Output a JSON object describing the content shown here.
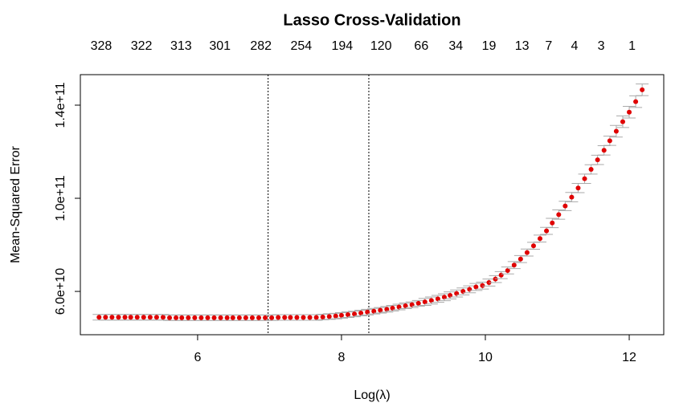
{
  "chart_data": {
    "type": "errorbar",
    "title": "Lasso Cross-Validation",
    "x_label": "Log(λ)",
    "y_label": "Mean-Squared Error",
    "x": [
      4.63,
      4.72,
      4.81,
      4.9,
      4.99,
      5.07,
      5.16,
      5.25,
      5.34,
      5.43,
      5.52,
      5.61,
      5.7,
      5.78,
      5.87,
      5.96,
      6.05,
      6.14,
      6.23,
      6.32,
      6.41,
      6.49,
      6.58,
      6.67,
      6.76,
      6.85,
      6.94,
      7.03,
      7.12,
      7.21,
      7.29,
      7.38,
      7.47,
      7.56,
      7.65,
      7.74,
      7.83,
      7.92,
      8.0,
      8.09,
      8.18,
      8.27,
      8.36,
      8.45,
      8.54,
      8.63,
      8.71,
      8.8,
      8.89,
      8.98,
      9.07,
      9.16,
      9.25,
      9.34,
      9.43,
      9.51,
      9.6,
      9.69,
      9.78,
      9.87,
      9.96,
      10.05,
      10.14,
      10.22,
      10.31,
      10.4,
      10.49,
      10.58,
      10.67,
      10.76,
      10.85,
      10.93,
      11.02,
      11.11,
      11.2,
      11.29,
      11.38,
      11.47,
      11.56,
      11.65,
      11.73,
      11.82,
      11.91,
      12.0,
      12.09,
      12.18
    ],
    "values": [
      48900000000.0,
      48900000000.0,
      48900000000.0,
      48900000000.0,
      48900000000.0,
      48900000000.0,
      48900000000.0,
      48900000000.0,
      48900000000.0,
      48900000000.0,
      48900000000.0,
      48700000000.0,
      48700000000.0,
      48700000000.0,
      48700000000.0,
      48700000000.0,
      48700000000.0,
      48700000000.0,
      48700000000.0,
      48700000000.0,
      48700000000.0,
      48700000000.0,
      48700000000.0,
      48700000000.0,
      48700000000.0,
      48700000000.0,
      48700000000.0,
      48700000000.0,
      48800000000.0,
      48800000000.0,
      48800000000.0,
      48800000000.0,
      48800000000.0,
      48800000000.0,
      48800000000.0,
      49000000000.0,
      49200000000.0,
      49400000000.0,
      49700000000.0,
      50000000000.0,
      50300000000.0,
      50700000000.0,
      51100000000.0,
      51500000000.0,
      51900000000.0,
      52300000000.0,
      52800000000.0,
      53300000000.0,
      53800000000.0,
      54300000000.0,
      54900000000.0,
      55500000000.0,
      56100000000.0,
      56800000000.0,
      57500000000.0,
      58300000000.0,
      59100000000.0,
      60000000000.0,
      60900000000.0,
      61900000000.0,
      62500000000.0,
      63800000000.0,
      65300000000.0,
      67000000000.0,
      69000000000.0,
      71300000000.0,
      73900000000.0,
      76700000000.0,
      79600000000.0,
      82700000000.0,
      86000000000.0,
      89400000000.0,
      93000000000.0,
      96700000000.0,
      100500000000.0,
      104400000000.0,
      108400000000.0,
      112400000000.0,
      116500000000.0,
      120600000000.0,
      124700000000.0,
      128800000000.0,
      132900000000.0,
      137000000000.0,
      141500000000.0,
      146600000000.0
    ],
    "errors": [
      1200000000.0,
      1200000000.0,
      1200000000.0,
      1200000000.0,
      1200000000.0,
      1200000000.0,
      1200000000.0,
      1200000000.0,
      1200000000.0,
      1200000000.0,
      1200000000.0,
      1200000000.0,
      1200000000.0,
      1200000000.0,
      1200000000.0,
      1200000000.0,
      1200000000.0,
      1200000000.0,
      1200000000.0,
      1200000000.0,
      1200000000.0,
      1200000000.0,
      1200000000.0,
      1200000000.0,
      1200000000.0,
      1200000000.0,
      1200000000.0,
      1200000000.0,
      1200000000.0,
      1200000000.0,
      1200000000.0,
      1200000000.0,
      1200000000.0,
      1200000000.0,
      1200000000.0,
      1200000000.0,
      1200000000.0,
      1200000000.0,
      1200000000.0,
      1200000000.0,
      1200000000.0,
      1200000000.0,
      1200000000.0,
      1200000000.0,
      1200000000.0,
      1200000000.0,
      1200000000.0,
      1200000000.0,
      1200000000.0,
      1200000000.0,
      1200000000.0,
      1500000000.0,
      1500000000.0,
      1500000000.0,
      1500000000.0,
      1500000000.0,
      1500000000.0,
      1500000000.0,
      1500000000.0,
      1500000000.0,
      1500000000.0,
      1500000000.0,
      1500000000.0,
      1500000000.0,
      1500000000.0,
      1500000000.0,
      1500000000.0,
      1500000000.0,
      1500000000.0,
      1500000000.0,
      1500000000.0,
      2000000000.0,
      2000000000.0,
      2000000000.0,
      2000000000.0,
      2000000000.0,
      2000000000.0,
      2000000000.0,
      2000000000.0,
      2000000000.0,
      2000000000.0,
      2500000000.0,
      2500000000.0,
      2500000000.0,
      2500000000.0,
      2500000000.0
    ],
    "color": "#e00000",
    "error_color": "#aaaaaa",
    "xlim": [
      4.37,
      12.48
    ],
    "ylim": [
      41400000000.0,
      153100000000.0
    ],
    "xticks": [
      6,
      8,
      10,
      12
    ],
    "yticks": [
      {
        "value": 60000000000.0,
        "label": "6.0e+10"
      },
      {
        "value": 100000000000.0,
        "label": "1.0e+11"
      },
      {
        "value": 140000000000.0,
        "label": "1.4e+11"
      }
    ],
    "vlines": [
      6.98,
      8.38
    ],
    "top_axis": {
      "x": [
        4.66,
        5.22,
        5.77,
        6.31,
        6.88,
        7.44,
        8.01,
        8.55,
        9.11,
        9.59,
        10.05,
        10.51,
        10.88,
        11.24,
        11.61,
        12.04
      ],
      "labels": [
        328,
        322,
        313,
        301,
        282,
        254,
        194,
        120,
        66,
        34,
        19,
        13,
        7,
        4,
        3,
        1
      ]
    }
  }
}
